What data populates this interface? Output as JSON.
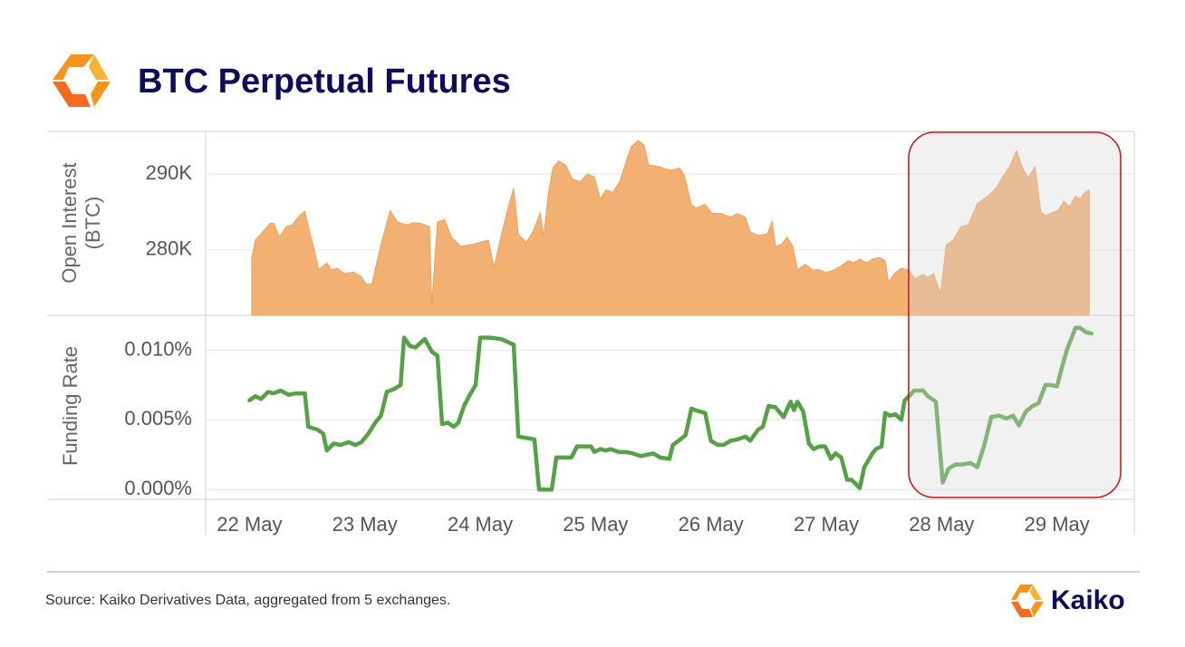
{
  "title": "BTC Perpetual Futures",
  "source": "Source: Kaiko Derivatives Data, aggregated from 5 exchanges.",
  "brand": "Kaiko",
  "chart_data": [
    {
      "type": "area",
      "y_label": "Open Interest (BTC)",
      "color": "#f2b072",
      "grid": true,
      "xlim": [
        21.62,
        29.67
      ],
      "ylim": [
        271400,
        295600
      ],
      "yticks": [
        {
          "value": 280000,
          "label": "280K"
        },
        {
          "value": 290000,
          "label": "290K"
        }
      ],
      "x": [
        22.02,
        22.05,
        22.12,
        22.18,
        22.21,
        22.26,
        22.32,
        22.37,
        22.42,
        22.48,
        22.49,
        22.56,
        22.6,
        22.67,
        22.71,
        22.76,
        22.82,
        22.9,
        22.97,
        23.01,
        23.06,
        23.14,
        23.22,
        23.28,
        23.36,
        23.42,
        23.48,
        23.56,
        23.58,
        23.63,
        23.69,
        23.75,
        23.83,
        23.92,
        24.0,
        24.07,
        24.12,
        24.18,
        24.24,
        24.29,
        24.33,
        24.4,
        24.46,
        24.52,
        24.55,
        24.59,
        24.63,
        24.68,
        24.74,
        24.8,
        24.87,
        24.93,
        24.99,
        25.04,
        25.09,
        25.15,
        25.21,
        25.26,
        25.31,
        25.37,
        25.42,
        25.46,
        25.54,
        25.65,
        25.73,
        25.77,
        25.83,
        25.87,
        25.95,
        26.01,
        26.09,
        26.17,
        26.23,
        26.3,
        26.34,
        26.41,
        26.49,
        26.53,
        26.56,
        26.61,
        26.66,
        26.71,
        26.75,
        26.82,
        26.88,
        26.94,
        27.0,
        27.07,
        27.13,
        27.19,
        27.24,
        27.29,
        27.35,
        27.4,
        27.46,
        27.51,
        27.54,
        27.59,
        27.65,
        27.71,
        27.77,
        27.84,
        27.88,
        27.93,
        27.99,
        28.04,
        28.1,
        28.17,
        28.23,
        28.31,
        28.4,
        28.47,
        28.53,
        28.59,
        28.65,
        28.7,
        28.75,
        28.81,
        28.86,
        28.9,
        28.97,
        29.01,
        29.06,
        29.11,
        29.16,
        29.2,
        29.23,
        29.28
      ],
      "values": [
        278900,
        281300,
        282500,
        283500,
        283500,
        281700,
        283100,
        283300,
        284300,
        285100,
        284300,
        280100,
        277400,
        278300,
        277400,
        277600,
        276900,
        277100,
        276500,
        275500,
        275500,
        280700,
        285200,
        283700,
        283300,
        283600,
        283500,
        283100,
        272700,
        283700,
        284000,
        281700,
        280500,
        280700,
        281000,
        281300,
        277700,
        281700,
        285500,
        288100,
        282100,
        281000,
        282500,
        284900,
        281700,
        287300,
        290800,
        291700,
        291200,
        289300,
        289000,
        290000,
        289600,
        286700,
        287900,
        287600,
        289000,
        291400,
        293600,
        294400,
        293800,
        291200,
        291000,
        290500,
        290800,
        289800,
        286000,
        285500,
        286000,
        284800,
        284800,
        284300,
        284800,
        284300,
        282400,
        281900,
        282100,
        283800,
        280500,
        280700,
        281700,
        280500,
        277400,
        278100,
        277400,
        277400,
        277000,
        277400,
        277900,
        278600,
        278300,
        278800,
        278300,
        278800,
        279000,
        278600,
        275700,
        276900,
        277600,
        277400,
        276200,
        276800,
        276400,
        276900,
        274300,
        280700,
        281300,
        283100,
        283300,
        286100,
        287100,
        288100,
        289600,
        291000,
        293100,
        290800,
        289500,
        291000,
        285000,
        284500,
        285000,
        285200,
        286400,
        285700,
        287100,
        286700,
        287400,
        287900
      ]
    },
    {
      "type": "line",
      "y_label": "Funding Rate",
      "color": "#56a046",
      "grid": true,
      "xlim": [
        21.62,
        29.67
      ],
      "ylim": [
        -0.0007,
        0.0125
      ],
      "yticks": [
        {
          "value": 0,
          "label": "0.000%"
        },
        {
          "value": 0.005,
          "label": "0.005%"
        },
        {
          "value": 0.01,
          "label": "0.010%"
        }
      ],
      "xticks": [
        {
          "value": 22,
          "label": "22 May"
        },
        {
          "value": 23,
          "label": "23 May"
        },
        {
          "value": 24,
          "label": "24 May"
        },
        {
          "value": 25,
          "label": "25 May"
        },
        {
          "value": 26,
          "label": "26 May"
        },
        {
          "value": 27,
          "label": "27 May"
        },
        {
          "value": 28,
          "label": "28 May"
        },
        {
          "value": 29,
          "label": "29 May"
        }
      ],
      "x": [
        22.0,
        22.05,
        22.1,
        22.16,
        22.21,
        22.27,
        22.34,
        22.4,
        22.48,
        22.51,
        22.59,
        22.64,
        22.67,
        22.73,
        22.79,
        22.86,
        22.92,
        22.97,
        23.03,
        23.09,
        23.14,
        23.19,
        23.25,
        23.31,
        23.34,
        23.39,
        23.44,
        23.52,
        23.58,
        23.63,
        23.67,
        23.72,
        23.77,
        23.81,
        23.86,
        23.91,
        23.96,
        24.0,
        24.08,
        24.18,
        24.29,
        24.33,
        24.4,
        24.47,
        24.51,
        24.62,
        24.66,
        24.79,
        24.84,
        24.96,
        24.99,
        25.04,
        25.09,
        25.13,
        25.2,
        25.26,
        25.32,
        25.39,
        25.45,
        25.5,
        25.56,
        25.64,
        25.67,
        25.72,
        25.78,
        25.83,
        25.9,
        25.95,
        26.0,
        26.06,
        26.11,
        26.17,
        26.23,
        26.3,
        26.34,
        26.41,
        26.45,
        26.5,
        26.56,
        26.63,
        26.69,
        26.72,
        26.75,
        26.8,
        26.85,
        26.89,
        26.94,
        26.99,
        27.04,
        27.08,
        27.13,
        27.18,
        27.22,
        27.29,
        27.33,
        27.4,
        27.43,
        27.48,
        27.51,
        27.55,
        27.6,
        27.65,
        27.68,
        27.73,
        27.76,
        27.84,
        27.88,
        27.95,
        28.01,
        28.06,
        28.12,
        28.18,
        28.25,
        28.31,
        28.37,
        28.43,
        28.5,
        28.56,
        28.62,
        28.67,
        28.73,
        28.79,
        28.84,
        28.9,
        28.95,
        29.0,
        29.05,
        29.09,
        29.16,
        29.2,
        29.25,
        29.3
      ],
      "values": [
        0.0064,
        0.0067,
        0.0065,
        0.007,
        0.0069,
        0.0071,
        0.0068,
        0.0069,
        0.0069,
        0.0045,
        0.0043,
        0.004,
        0.0028,
        0.0033,
        0.0032,
        0.0034,
        0.0032,
        0.0034,
        0.004,
        0.0048,
        0.0053,
        0.007,
        0.0072,
        0.0075,
        0.0109,
        0.0103,
        0.0102,
        0.0108,
        0.0099,
        0.0096,
        0.0047,
        0.0048,
        0.0045,
        0.0048,
        0.006,
        0.0068,
        0.0075,
        0.0109,
        0.0109,
        0.0108,
        0.0104,
        0.0038,
        0.0037,
        0.0036,
        0,
        0,
        0.0023,
        0.0023,
        0.0031,
        0.0031,
        0.0027,
        0.0029,
        0.0028,
        0.0029,
        0.0027,
        0.0027,
        0.0026,
        0.0024,
        0.0025,
        0.0026,
        0.0023,
        0.0022,
        0.0032,
        0.0035,
        0.0039,
        0.0058,
        0.0056,
        0.0055,
        0.0035,
        0.0032,
        0.0032,
        0.0035,
        0.0036,
        0.0038,
        0.0035,
        0.0043,
        0.0045,
        0.006,
        0.0059,
        0.0052,
        0.0063,
        0.0057,
        0.0063,
        0.0056,
        0.0033,
        0.0029,
        0.0031,
        0.0031,
        0.0022,
        0.0026,
        0.0023,
        0.0007,
        0.0007,
        0.0001,
        0.0016,
        0.0026,
        0.0029,
        0.0031,
        0.0055,
        0.0053,
        0.0054,
        0.005,
        0.0064,
        0.0068,
        0.0071,
        0.0071,
        0.0067,
        0.0063,
        0.0005,
        0.0015,
        0.0018,
        0.0018,
        0.0019,
        0.0016,
        0.0032,
        0.0052,
        0.0053,
        0.0051,
        0.0053,
        0.0046,
        0.0056,
        0.006,
        0.0062,
        0.0075,
        0.0075,
        0.0074,
        0.009,
        0.0101,
        0.0116,
        0.0116,
        0.0113,
        0.0112
      ]
    }
  ]
}
